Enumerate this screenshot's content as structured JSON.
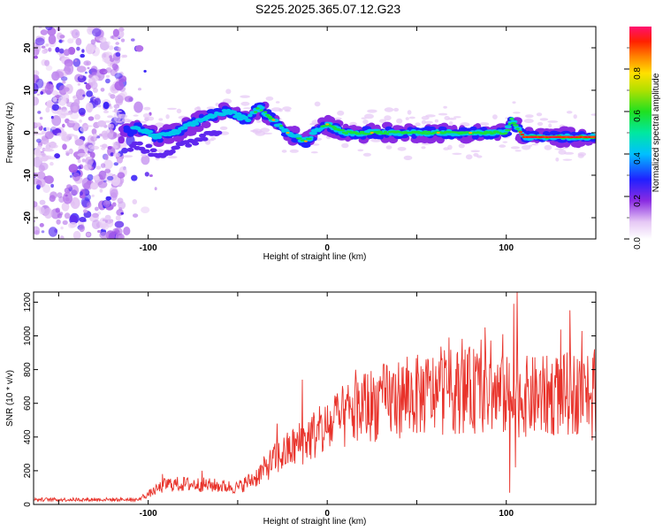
{
  "title": "S225.2025.365.07.12.G23",
  "chart_data": [
    {
      "type": "heatmap",
      "xlabel": "Height of straight line (km)",
      "ylabel": "Frequency (Hz)",
      "xlim": [
        -164,
        150
      ],
      "ylim": [
        -25,
        25
      ],
      "xticks": [
        "-100",
        "0",
        "100"
      ],
      "yticks": [
        "-20",
        "-10",
        "0",
        "10",
        "20"
      ],
      "ridge": [
        [
          -115,
          0
        ],
        [
          -105,
          1
        ],
        [
          -95,
          -1
        ],
        [
          -85,
          0
        ],
        [
          -75,
          2
        ],
        [
          -65,
          4
        ],
        [
          -55,
          5
        ],
        [
          -45,
          3
        ],
        [
          -38,
          6
        ],
        [
          -30,
          3
        ],
        [
          -22,
          0
        ],
        [
          -12,
          -2
        ],
        [
          -5,
          1
        ],
        [
          0,
          2
        ],
        [
          10,
          0
        ],
        [
          30,
          0
        ],
        [
          60,
          0
        ],
        [
          90,
          0
        ],
        [
          100,
          0
        ],
        [
          103,
          3
        ],
        [
          110,
          -1
        ],
        [
          149,
          -1
        ]
      ],
      "colorbar": {
        "label": "Normalized spectral amplitude",
        "range": [
          0,
          1
        ],
        "ticks": [
          "0.0",
          "0.2",
          "0.4",
          "0.6",
          "0.8"
        ]
      }
    },
    {
      "type": "line",
      "xlabel": "Height of straight line (km)",
      "ylabel": "SNR (10 * v/v)",
      "xlim": [
        -164,
        150
      ],
      "ylim": [
        0,
        1260
      ],
      "xticks": [
        "-100",
        "0",
        "100"
      ],
      "yticks": [
        "0",
        "200",
        "400",
        "600",
        "800",
        "1000",
        "1200"
      ],
      "color": "#e8322a",
      "envelope": [
        [
          -164,
          30
        ],
        [
          -130,
          28
        ],
        [
          -105,
          35
        ],
        [
          -100,
          60
        ],
        [
          -90,
          120
        ],
        [
          -75,
          120
        ],
        [
          -60,
          110
        ],
        [
          -50,
          100
        ],
        [
          -40,
          160
        ],
        [
          -30,
          260
        ],
        [
          -20,
          330
        ],
        [
          -10,
          400
        ],
        [
          0,
          450
        ],
        [
          10,
          520
        ],
        [
          20,
          580
        ],
        [
          40,
          630
        ],
        [
          60,
          660
        ],
        [
          80,
          680
        ],
        [
          100,
          640
        ],
        [
          120,
          640
        ],
        [
          140,
          660
        ],
        [
          150,
          670
        ]
      ],
      "spikes": [
        [
          -92,
          180
        ],
        [
          -70,
          200
        ],
        [
          -28,
          480
        ],
        [
          -14,
          740
        ],
        [
          5,
          640
        ],
        [
          30,
          700
        ],
        [
          68,
          990
        ],
        [
          88,
          1050
        ],
        [
          98,
          1010
        ],
        [
          104,
          1190
        ],
        [
          106,
          1260
        ],
        [
          102,
          70
        ],
        [
          105,
          220
        ],
        [
          148,
          380
        ]
      ]
    }
  ]
}
